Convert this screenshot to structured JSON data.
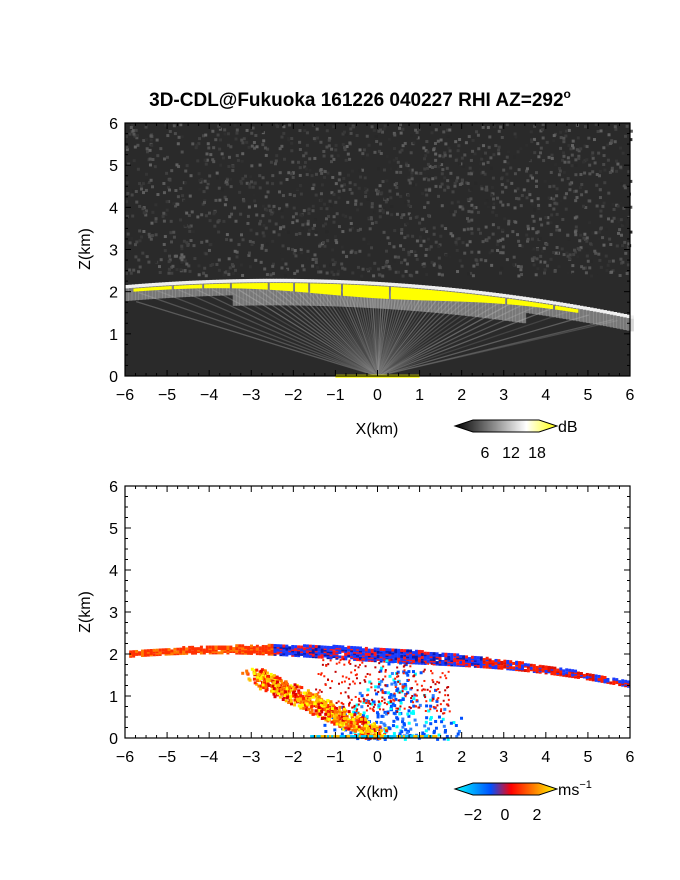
{
  "title": "3D-CDL@Fukuoka 161226 040227 RHI AZ=292",
  "title_superscript": "o",
  "chart_data": [
    {
      "type": "heatmap",
      "name": "backscatter",
      "xlabel": "X(km)",
      "ylabel": "Z(km)",
      "xlim": [
        -6,
        6
      ],
      "ylim": [
        0,
        6
      ],
      "xticks": [
        "−6",
        "−5",
        "−4",
        "−3",
        "−2",
        "−1",
        "0",
        "1",
        "2",
        "3",
        "4",
        "5",
        "6"
      ],
      "yticks": [
        "0",
        "1",
        "2",
        "3",
        "4",
        "5",
        "6"
      ],
      "colorbar": {
        "unit": "dB",
        "ticks": [
          "6",
          "12",
          "18"
        ],
        "colors": [
          "#000000",
          "#ffffff",
          "#ffff00"
        ]
      }
    },
    {
      "type": "heatmap",
      "name": "doppler-velocity",
      "xlabel": "X(km)",
      "ylabel": "Z(km)",
      "xlim": [
        -6,
        6
      ],
      "ylim": [
        0,
        6
      ],
      "xticks": [
        "−6",
        "−5",
        "−4",
        "−3",
        "−2",
        "−1",
        "0",
        "1",
        "2",
        "3",
        "4",
        "5",
        "6"
      ],
      "yticks": [
        "0",
        "1",
        "2",
        "3",
        "4",
        "5",
        "6"
      ],
      "colorbar": {
        "unit": "ms",
        "unit_exponent": "−1",
        "ticks": [
          "−2",
          "0",
          "2"
        ],
        "colors": [
          "#00ffff",
          "#0050ff",
          "#ff0000",
          "#ffff00"
        ]
      }
    }
  ]
}
